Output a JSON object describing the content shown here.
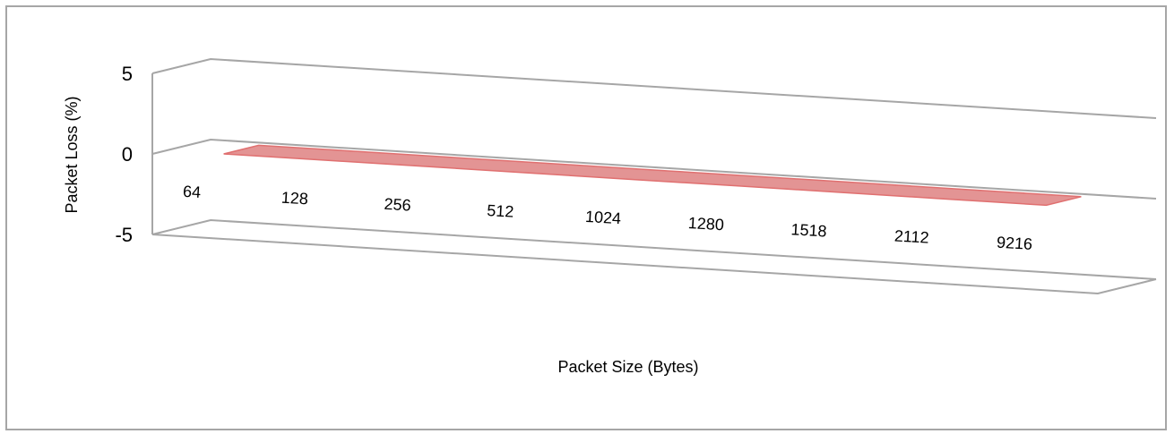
{
  "chart_data": {
    "type": "area",
    "view": "3d",
    "categories": [
      "64",
      "128",
      "256",
      "512",
      "1024",
      "1280",
      "1518",
      "2112",
      "9216"
    ],
    "series": [
      {
        "values": [
          0,
          0,
          0,
          0,
          0,
          0,
          0,
          0,
          0
        ],
        "color": "#e39494"
      }
    ],
    "xlabel": "Packet Size (Bytes)",
    "ylabel": "Packet Loss (%)",
    "ylim": [
      -5,
      5
    ],
    "yticks": [
      "5",
      "0",
      "-5"
    ],
    "grid": true,
    "legend": "none"
  },
  "colors": {
    "series": "#e39494",
    "series_edge": "#e07070",
    "gridline": "#a6a6a6",
    "border": "#a6a6a6"
  }
}
